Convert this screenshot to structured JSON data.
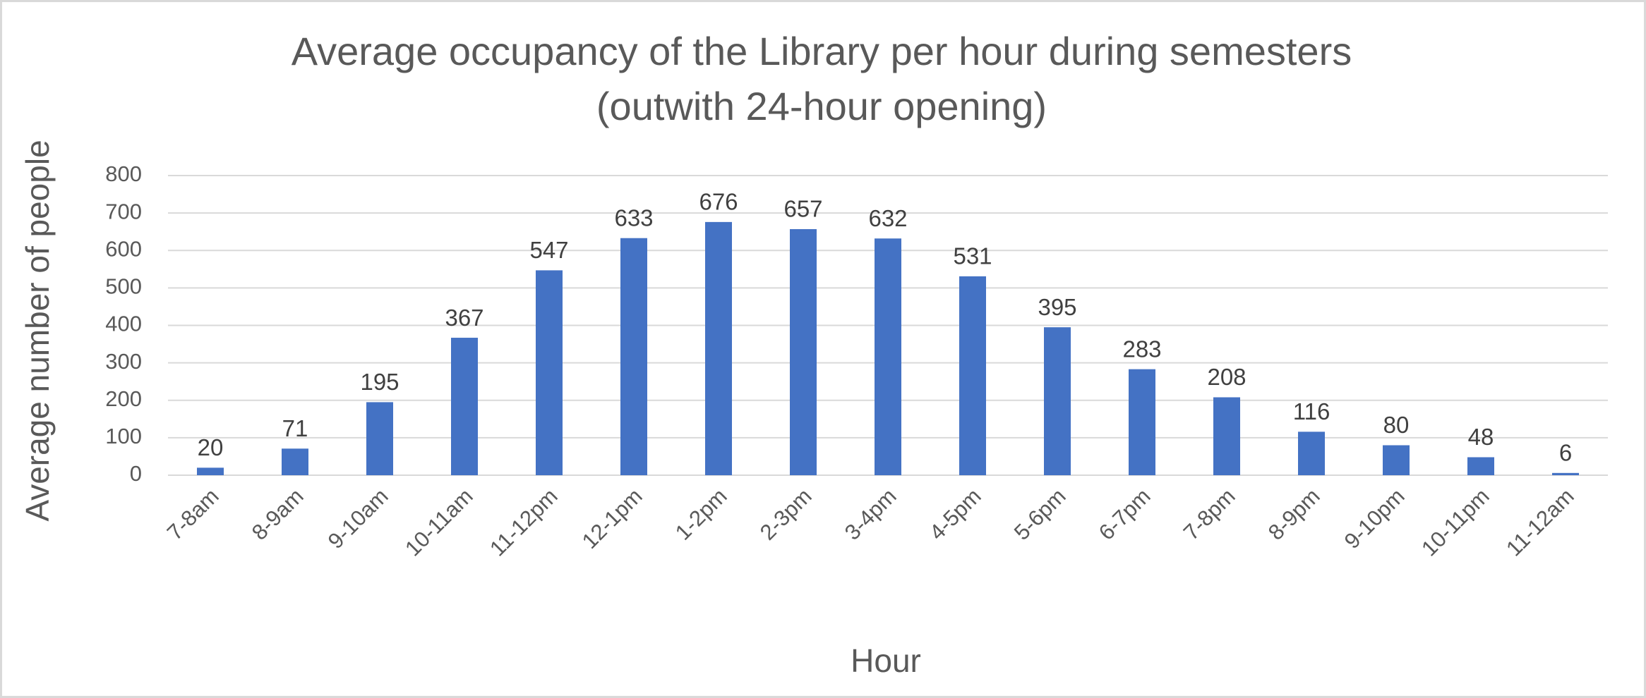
{
  "chart_data": {
    "type": "bar",
    "title": [
      "Average occupancy of the Library per hour during semesters",
      "(outwith 24-hour opening)"
    ],
    "x_label": "Hour",
    "y_label": "Average number of people",
    "categories": [
      "7-8am",
      "8-9am",
      "9-10am",
      "10-11am",
      "11-12pm",
      "12-1pm",
      "1-2pm",
      "2-3pm",
      "3-4pm",
      "4-5pm",
      "5-6pm",
      "6-7pm",
      "7-8pm",
      "8-9pm",
      "9-10pm",
      "10-11pm",
      "11-12am"
    ],
    "values": [
      20,
      71,
      195,
      367,
      547,
      633,
      676,
      657,
      632,
      531,
      395,
      283,
      208,
      116,
      80,
      48,
      6
    ],
    "color": "#4472c4",
    "ylim": [
      0,
      800
    ],
    "yticks": [
      0,
      100,
      200,
      300,
      400,
      500,
      600,
      700,
      800
    ],
    "grid": true
  }
}
